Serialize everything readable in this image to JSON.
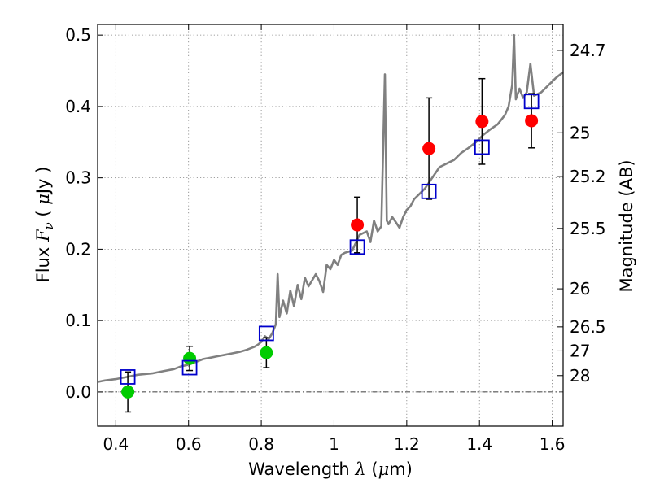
{
  "chart_data": {
    "type": "scatter",
    "xlabel": {
      "prefix": "Wavelength  ",
      "symbol": "λ",
      "units_open": " (",
      "mu": "μ",
      "units_rest": "m)"
    },
    "ylabel": {
      "prefix": "Flux  ",
      "symbol": "F",
      "sub": "ν",
      "units_open": "  ( ",
      "mu": "μ",
      "units_rest": "Jy )"
    },
    "y2label": "Magnitude (AB)",
    "xlim": [
      0.35,
      1.63
    ],
    "ylim": [
      -0.048,
      0.515
    ],
    "grid": true,
    "x_ticks": [
      {
        "value": 0.4,
        "label": "0.4"
      },
      {
        "value": 0.6,
        "label": "0.6"
      },
      {
        "value": 0.8,
        "label": "0.8"
      },
      {
        "value": 1.0,
        "label": "1"
      },
      {
        "value": 1.2,
        "label": "1.2"
      },
      {
        "value": 1.4,
        "label": "1.4"
      },
      {
        "value": 1.6,
        "label": "1.6"
      }
    ],
    "y_ticks": [
      {
        "value": 0.0,
        "label": "0.0"
      },
      {
        "value": 0.1,
        "label": "0.1"
      },
      {
        "value": 0.2,
        "label": "0.2"
      },
      {
        "value": 0.3,
        "label": "0.3"
      },
      {
        "value": 0.4,
        "label": "0.4"
      },
      {
        "value": 0.5,
        "label": "0.5"
      }
    ],
    "y2_ticks": [
      {
        "label": "24.7",
        "flux": 0.4786
      },
      {
        "label": "25",
        "flux": 0.3631
      },
      {
        "label": "25.2",
        "flux": 0.302
      },
      {
        "label": "25.5",
        "flux": 0.2291
      },
      {
        "label": "26",
        "flux": 0.1445
      },
      {
        "label": "26.5",
        "flux": 0.0912
      },
      {
        "label": "27",
        "flux": 0.0575
      },
      {
        "label": "28",
        "flux": 0.0229
      }
    ],
    "zero_line": {
      "y": 0.0,
      "color": "#000000",
      "style": "dash-dot"
    },
    "series": [
      {
        "kind": "line",
        "color": "#808080",
        "x": [
          0.35,
          0.37,
          0.4,
          0.43,
          0.46,
          0.5,
          0.53,
          0.56,
          0.58,
          0.6,
          0.62,
          0.64,
          0.66,
          0.68,
          0.7,
          0.72,
          0.74,
          0.76,
          0.78,
          0.79,
          0.8,
          0.81,
          0.82,
          0.83,
          0.84,
          0.845,
          0.85,
          0.86,
          0.87,
          0.88,
          0.89,
          0.9,
          0.91,
          0.92,
          0.93,
          0.95,
          0.96,
          0.97,
          0.98,
          0.99,
          1.0,
          1.01,
          1.02,
          1.03,
          1.05,
          1.07,
          1.09,
          1.1,
          1.11,
          1.12,
          1.13,
          1.14,
          1.145,
          1.15,
          1.16,
          1.17,
          1.18,
          1.19,
          1.2,
          1.21,
          1.22,
          1.23,
          1.25,
          1.27,
          1.29,
          1.31,
          1.33,
          1.35,
          1.37,
          1.39,
          1.41,
          1.43,
          1.45,
          1.47,
          1.48,
          1.49,
          1.495,
          1.5,
          1.51,
          1.52,
          1.53,
          1.54,
          1.55,
          1.57,
          1.59,
          1.61,
          1.63
        ],
        "y": [
          0.014,
          0.016,
          0.018,
          0.021,
          0.024,
          0.026,
          0.029,
          0.032,
          0.036,
          0.038,
          0.042,
          0.046,
          0.048,
          0.05,
          0.052,
          0.054,
          0.056,
          0.059,
          0.063,
          0.066,
          0.07,
          0.078,
          0.074,
          0.082,
          0.095,
          0.165,
          0.105,
          0.128,
          0.11,
          0.142,
          0.12,
          0.15,
          0.13,
          0.16,
          0.148,
          0.165,
          0.155,
          0.14,
          0.178,
          0.172,
          0.185,
          0.178,
          0.192,
          0.195,
          0.198,
          0.22,
          0.225,
          0.21,
          0.24,
          0.225,
          0.232,
          0.445,
          0.24,
          0.235,
          0.245,
          0.238,
          0.23,
          0.245,
          0.255,
          0.26,
          0.27,
          0.275,
          0.285,
          0.3,
          0.315,
          0.32,
          0.325,
          0.335,
          0.342,
          0.35,
          0.36,
          0.368,
          0.375,
          0.388,
          0.4,
          0.43,
          0.5,
          0.41,
          0.425,
          0.412,
          0.42,
          0.46,
          0.415,
          0.42,
          0.43,
          0.44,
          0.448
        ]
      },
      {
        "kind": "squares",
        "color": "#0000cc",
        "x": [
          0.433,
          0.603,
          0.814,
          1.064,
          1.261,
          1.407,
          1.543
        ],
        "y": [
          0.021,
          0.034,
          0.082,
          0.203,
          0.281,
          0.343,
          0.407
        ]
      },
      {
        "kind": "points",
        "x": [
          0.433,
          0.603,
          0.814,
          1.064,
          1.261,
          1.407,
          1.543
        ],
        "y": [
          0.0,
          0.047,
          0.055,
          0.234,
          0.341,
          0.379,
          0.38
        ],
        "yerr": [
          0.028,
          0.017,
          0.021,
          0.039,
          0.071,
          0.06,
          0.038
        ],
        "colors": [
          "#00cc00",
          "#00cc00",
          "#00cc00",
          "#ff0000",
          "#ff0000",
          "#ff0000",
          "#ff0000"
        ]
      }
    ]
  }
}
